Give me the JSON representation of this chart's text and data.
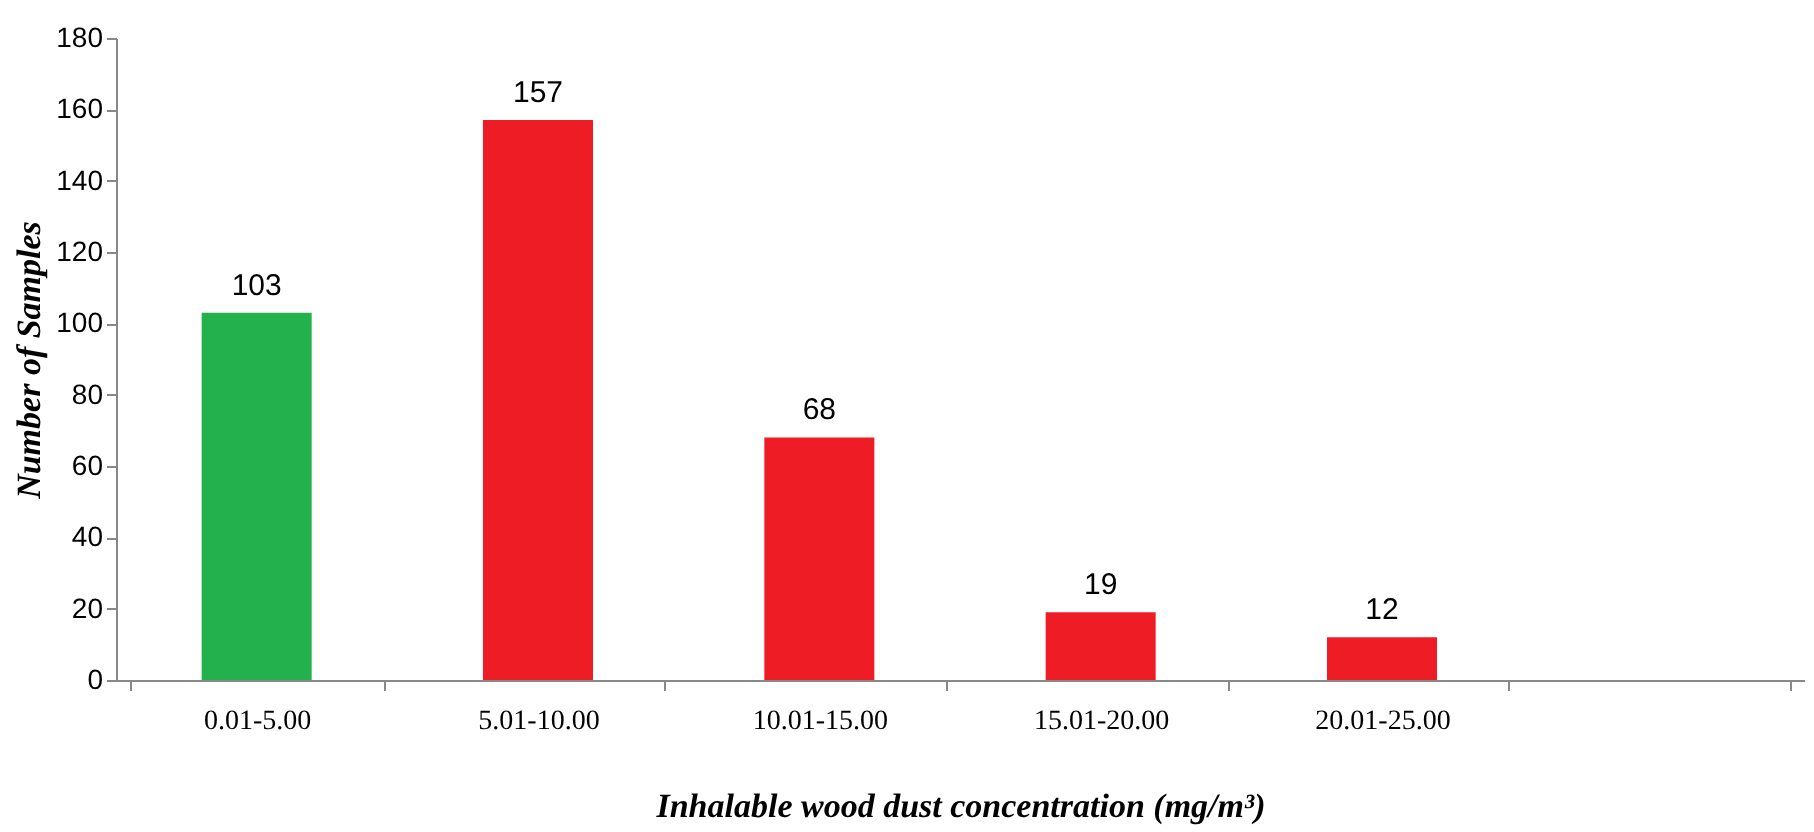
{
  "chart_data": {
    "type": "bar",
    "categories": [
      "0.01-5.00",
      "5.01-10.00",
      "10.01-15.00",
      "15.01-20.00",
      "20.01-25.00",
      null
    ],
    "values": [
      103,
      157,
      68,
      19,
      12,
      null
    ],
    "colors": [
      "#22b14c",
      "#ee1c25",
      "#ee1c25",
      "#ee1c25",
      "#ee1c25",
      "#ee1c25"
    ],
    "xlabel": "Inhalable wood dust concentration (mg/m³)",
    "ylabel": "Number of Samples",
    "ylim": [
      0,
      180
    ],
    "yticks": [
      0,
      20,
      40,
      60,
      80,
      100,
      120,
      140,
      160,
      180
    ],
    "data_labels": true,
    "grid": false
  }
}
